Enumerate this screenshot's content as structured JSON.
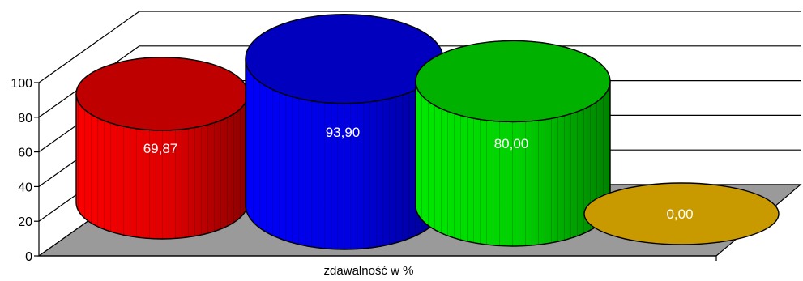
{
  "chart_data": {
    "type": "bar",
    "xlabel": "zdawalność w %",
    "ylabel": "",
    "ylim": [
      0,
      100
    ],
    "yticks": [
      "0",
      "20",
      "40",
      "60",
      "80",
      "100"
    ],
    "grid": true,
    "series": [
      {
        "value": 69.87,
        "label": "69,87",
        "color": "#e00000"
      },
      {
        "value": 93.9,
        "label": "93,90",
        "color": "#0000e0"
      },
      {
        "value": 80.0,
        "label": "80,00",
        "color": "#00d000"
      },
      {
        "value": 0.0,
        "label": "0,00",
        "color": "#c89a00"
      }
    ]
  }
}
